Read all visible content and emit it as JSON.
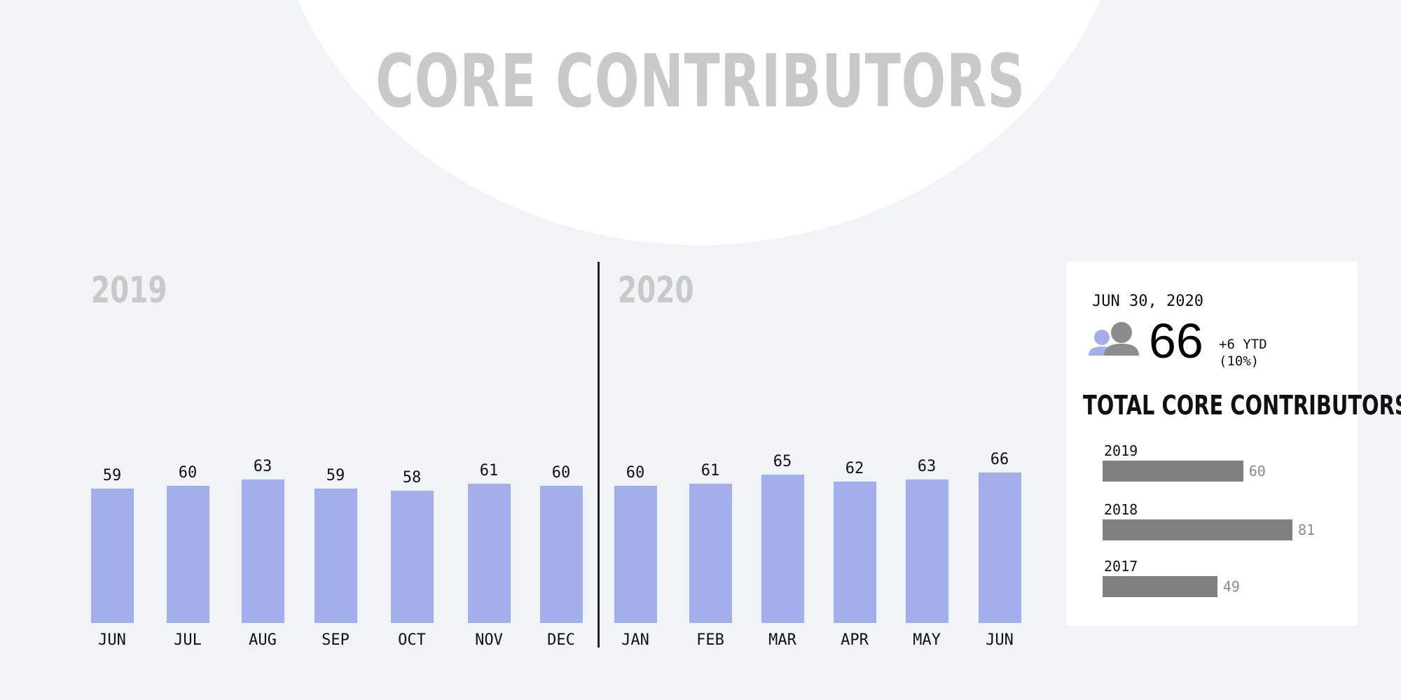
{
  "title": "CORE CONTRIBUTORS",
  "colors": {
    "bar": "#a2afec",
    "panel_bar": "#808080",
    "title": "#c9c9c9"
  },
  "chart_data": [
    {
      "type": "bar",
      "groups": [
        "2019",
        "2020"
      ],
      "categories": [
        "JUN",
        "JUL",
        "AUG",
        "SEP",
        "OCT",
        "NOV",
        "DEC",
        "JAN",
        "FEB",
        "MAR",
        "APR",
        "MAY",
        "JUN"
      ],
      "values": [
        59,
        60,
        63,
        59,
        58,
        61,
        60,
        60,
        61,
        65,
        62,
        63,
        66
      ]
    },
    {
      "type": "bar",
      "orientation": "horizontal",
      "title": "TOTAL CORE CONTRIBUTORS",
      "categories": [
        "2019",
        "2018",
        "2017"
      ],
      "values": [
        60,
        81,
        49
      ]
    }
  ],
  "summary": {
    "date": "JUN 30, 2020",
    "icon": "users-icon",
    "value": "66",
    "ytd_line1": "+6 YTD",
    "ytd_line2": "(10%)"
  }
}
